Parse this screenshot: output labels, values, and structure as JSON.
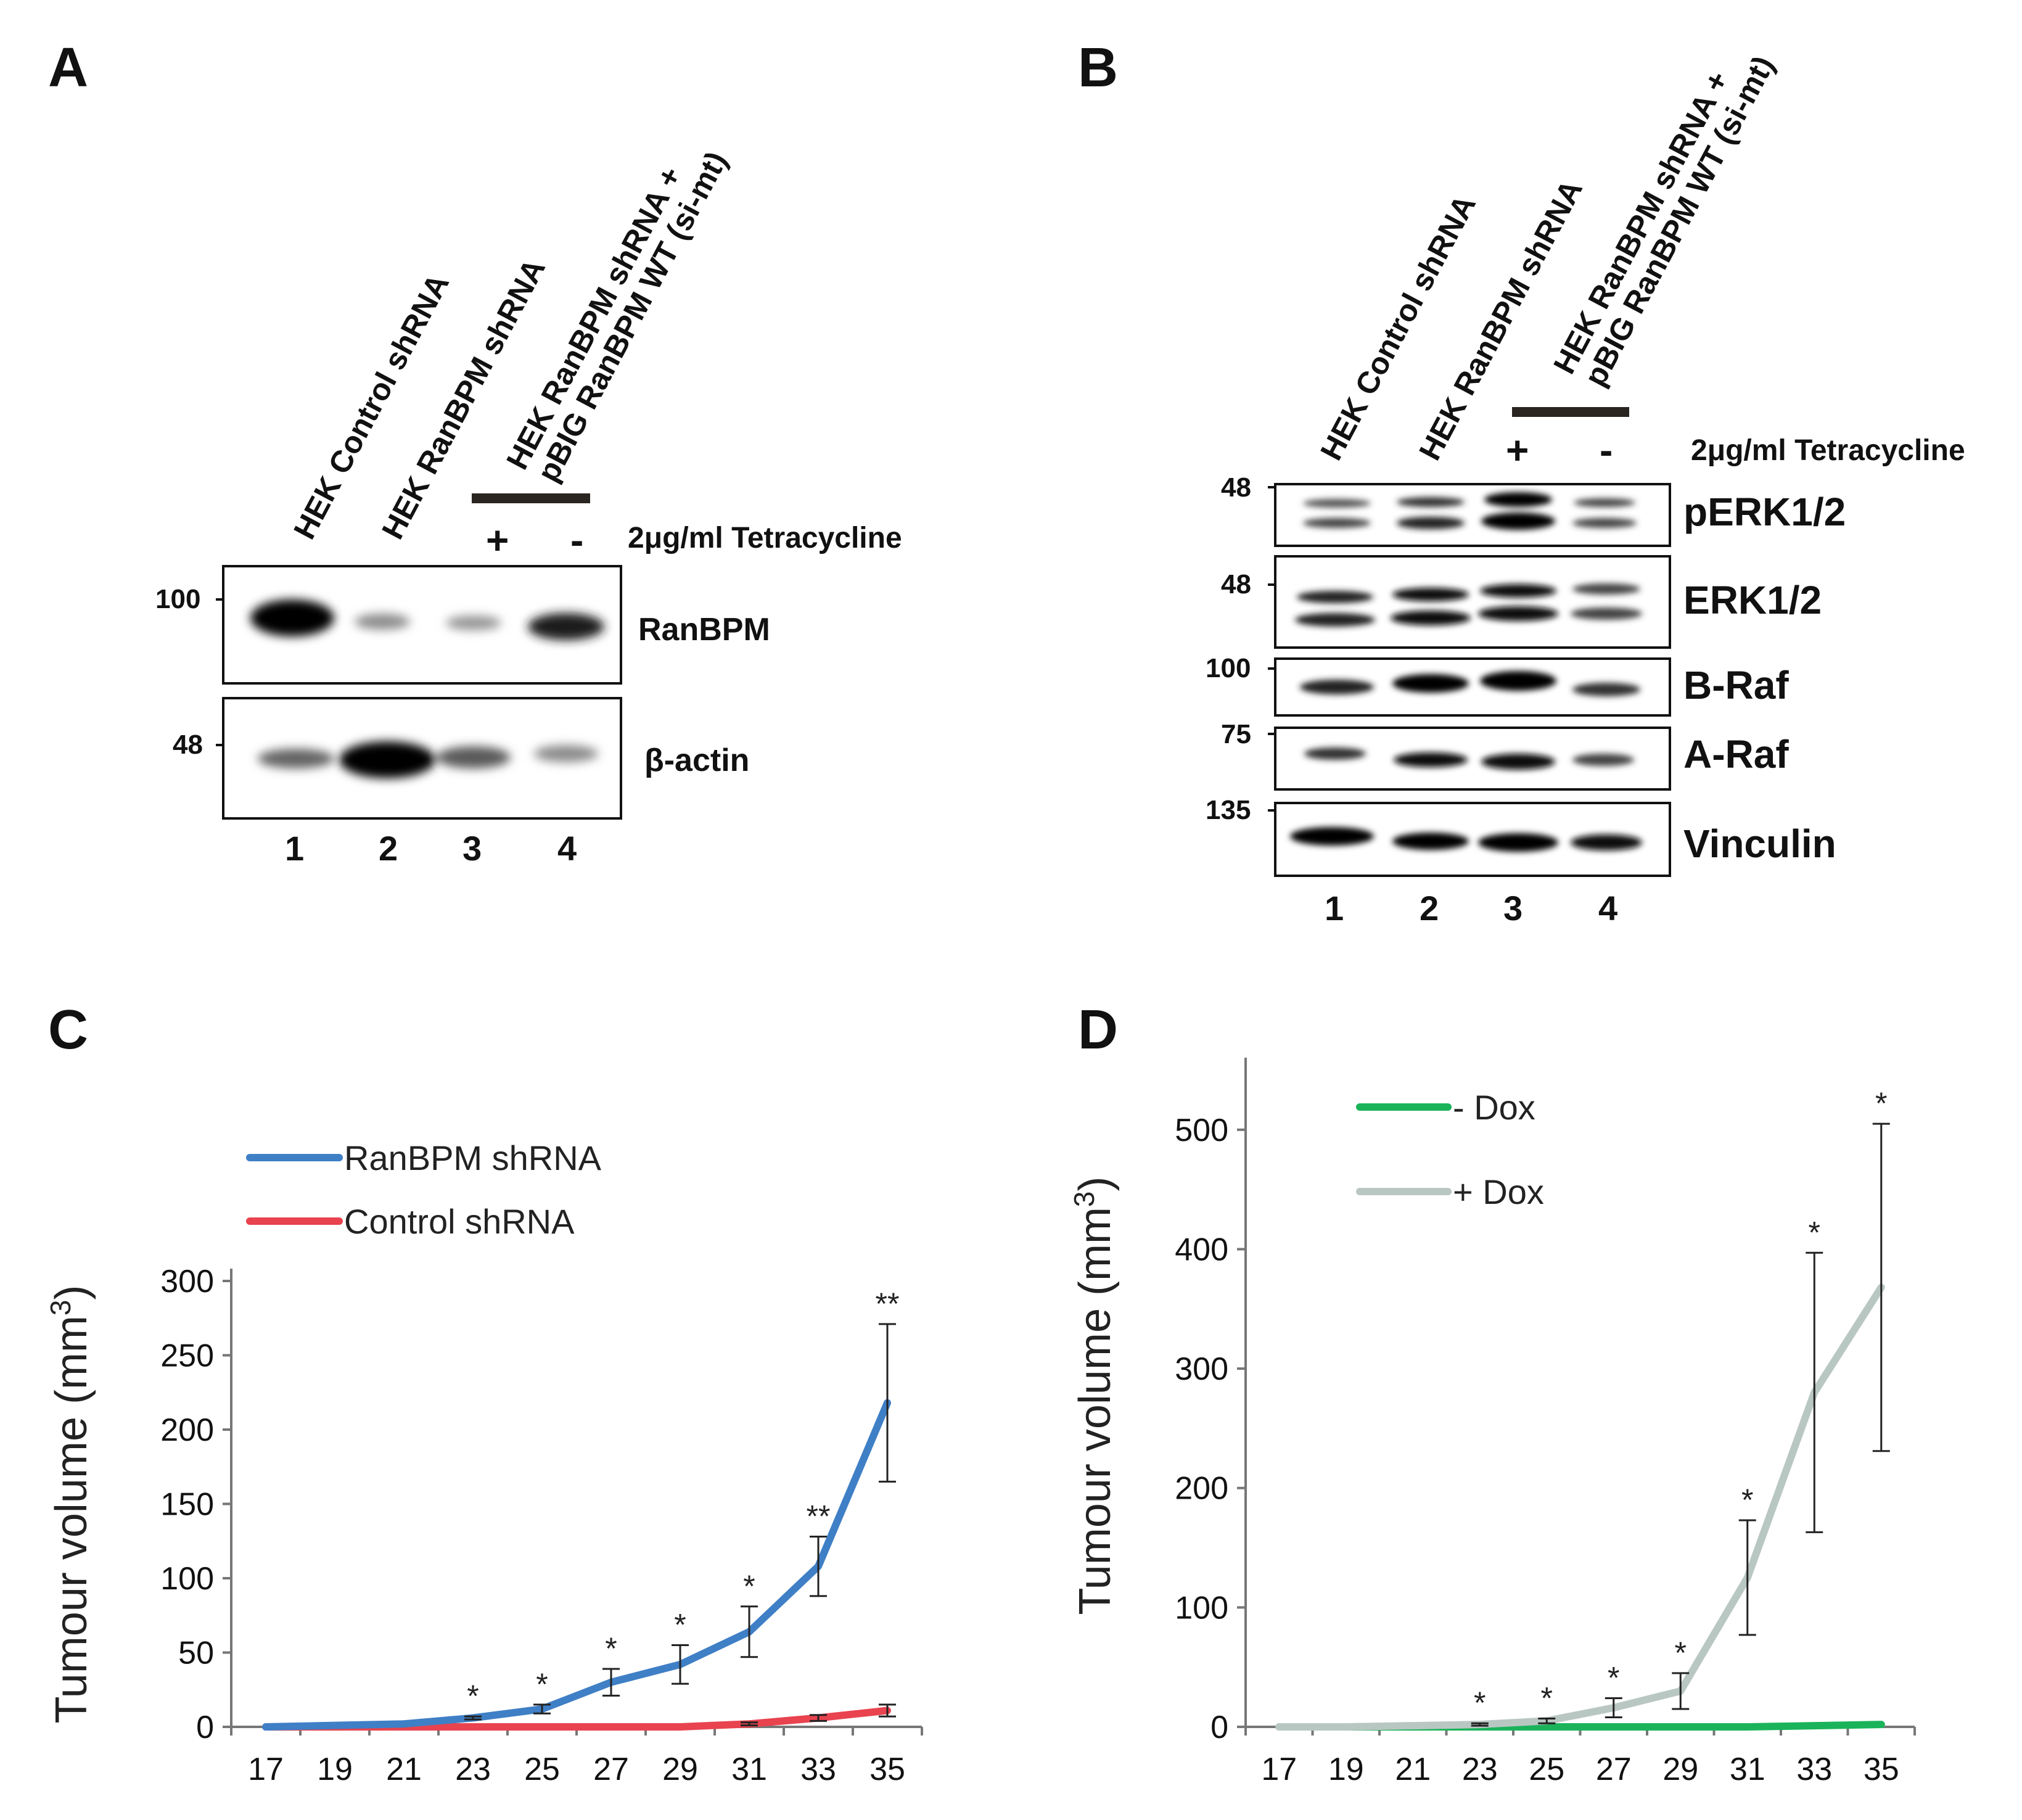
{
  "panels": {
    "a": "A",
    "b": "B",
    "c": "C",
    "d": "D"
  },
  "lanes": {
    "l1": "HEK Control shRNA",
    "l2": "HEK RanBPM shRNA",
    "l3_line1": "HEK RanBPM shRNA +",
    "l3_line2": "pBIG RanBPM WT (si-mt)"
  },
  "treatment": {
    "plus": "+",
    "minus": "-",
    "label": "2μg/ml Tetracycline"
  },
  "lane_numbers": [
    "1",
    "2",
    "3",
    "4"
  ],
  "blot_a": {
    "rows": [
      {
        "marker": "100",
        "protein": "RanBPM",
        "intensities": [
          1.0,
          0.3,
          0.25,
          0.85
        ]
      },
      {
        "marker": "48",
        "protein": "β-actin",
        "intensities": [
          0.5,
          1.0,
          0.55,
          0.3
        ]
      }
    ]
  },
  "blot_b": {
    "rows": [
      {
        "marker": "48",
        "protein": "pERK1/2",
        "intensities": [
          0.35,
          0.55,
          1.0,
          0.4
        ]
      },
      {
        "marker": "48",
        "protein": "ERK1/2",
        "intensities": [
          0.75,
          0.8,
          0.8,
          0.55
        ]
      },
      {
        "marker": "100",
        "protein": "B-Raf",
        "intensities": [
          0.65,
          0.9,
          0.95,
          0.5
        ]
      },
      {
        "marker": "75",
        "protein": "A-Raf",
        "intensities": [
          0.55,
          0.8,
          0.85,
          0.45
        ]
      },
      {
        "marker": "135",
        "protein": "Vinculin",
        "intensities": [
          0.95,
          0.9,
          0.95,
          0.85
        ]
      }
    ]
  },
  "chart_data": [
    {
      "type": "line",
      "panel": "C",
      "ylabel": "Tumour volume (mm3)",
      "ylabel_text": "Tumour volume (mm",
      "ylabel_sup": "3",
      "ylabel_close": ")",
      "xlabel": "",
      "x": [
        17,
        19,
        21,
        23,
        25,
        27,
        29,
        31,
        33,
        35
      ],
      "xticks": [
        "17",
        "19",
        "21",
        "23",
        "25",
        "27",
        "29",
        "31",
        "33",
        "35"
      ],
      "ylim": [
        0,
        300
      ],
      "yticks": [
        "0",
        "50",
        "100",
        "150",
        "200",
        "250",
        "300"
      ],
      "series": [
        {
          "name": "RanBPM shRNA",
          "color": "#3f7fc6",
          "values": [
            0,
            1,
            2,
            6,
            12,
            30,
            42,
            64,
            108,
            218
          ],
          "errors": [
            0,
            0,
            0,
            1,
            3,
            9,
            13,
            17,
            20,
            53
          ]
        },
        {
          "name": "Control shRNA",
          "color": "#e8434f",
          "values": [
            0,
            0,
            0,
            0,
            0,
            0,
            0,
            2,
            6,
            11
          ],
          "errors": [
            0,
            0,
            0,
            0,
            0,
            0,
            0,
            1,
            2,
            4
          ]
        }
      ],
      "significance": [
        "",
        "",
        "",
        "*",
        "*",
        "*",
        "*",
        "*",
        "**",
        "**"
      ],
      "error_series": 0,
      "legend_position": "top-left"
    },
    {
      "type": "line",
      "panel": "D",
      "ylabel": "Tumour volume (mm3)",
      "ylabel_text": "Tumour volume (mm",
      "ylabel_sup": "3",
      "ylabel_close": ")",
      "xlabel": "",
      "x": [
        17,
        19,
        21,
        23,
        25,
        27,
        29,
        31,
        33,
        35
      ],
      "xticks": [
        "17",
        "19",
        "21",
        "23",
        "25",
        "27",
        "29",
        "31",
        "33",
        "35"
      ],
      "ylim": [
        0,
        550
      ],
      "yticks": [
        "0",
        "100",
        "200",
        "300",
        "400",
        "500"
      ],
      "series": [
        {
          "name": "- Dox",
          "color": "#1bb35a",
          "values": [
            0,
            0,
            0,
            0,
            0,
            0,
            0,
            0,
            1,
            2
          ],
          "errors": [
            0,
            0,
            0,
            0,
            0,
            0,
            0,
            0,
            0,
            0
          ]
        },
        {
          "name": "+ Dox",
          "color": "#b9c7c2",
          "values": [
            0,
            0,
            1,
            2,
            5,
            16,
            30,
            125,
            280,
            368
          ],
          "errors": [
            0,
            0,
            0,
            1,
            2,
            8,
            15,
            48,
            117,
            137
          ]
        }
      ],
      "significance": [
        "",
        "",
        "",
        "*",
        "*",
        "*",
        "*",
        "*",
        "*",
        "*"
      ],
      "error_series": 1,
      "legend_position": "top-left"
    }
  ]
}
